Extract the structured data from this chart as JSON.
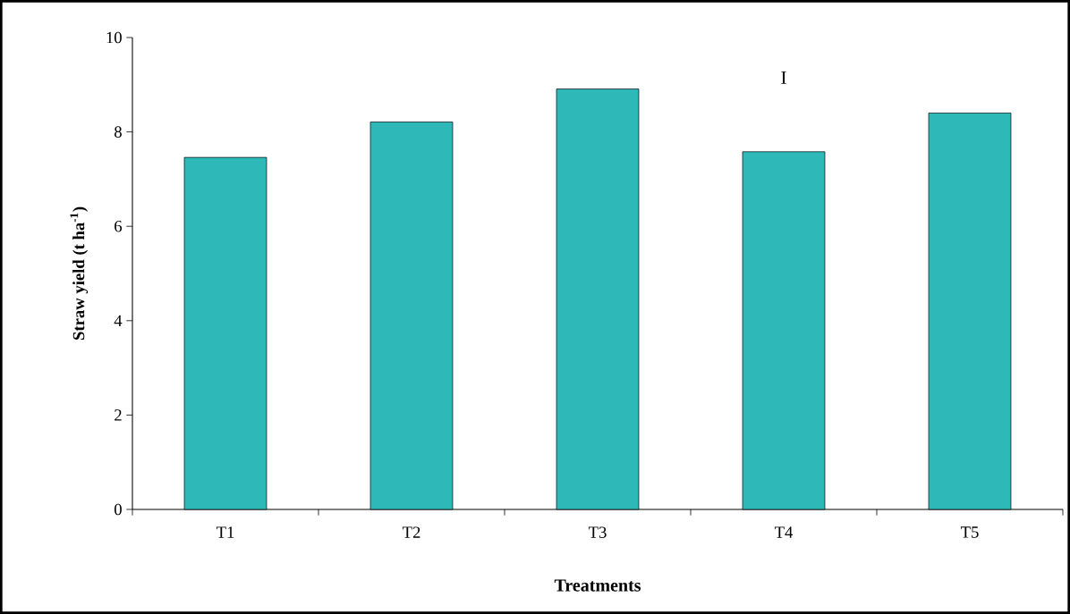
{
  "chart_data": {
    "type": "bar",
    "categories": [
      "T1",
      "T2",
      "T3",
      "T4",
      "T5"
    ],
    "values": [
      7.46,
      8.21,
      8.91,
      7.58,
      8.4
    ],
    "color": "#2eb8b8",
    "xlabel": "Treatments",
    "ylabel": "**Straw yield (t ha$^{-1}$)**",
    "ylim": [
      0,
      10
    ],
    "yticks": [
      0,
      2,
      4,
      6,
      8,
      10
    ],
    "annotations": [
      "I"
    ]
  }
}
